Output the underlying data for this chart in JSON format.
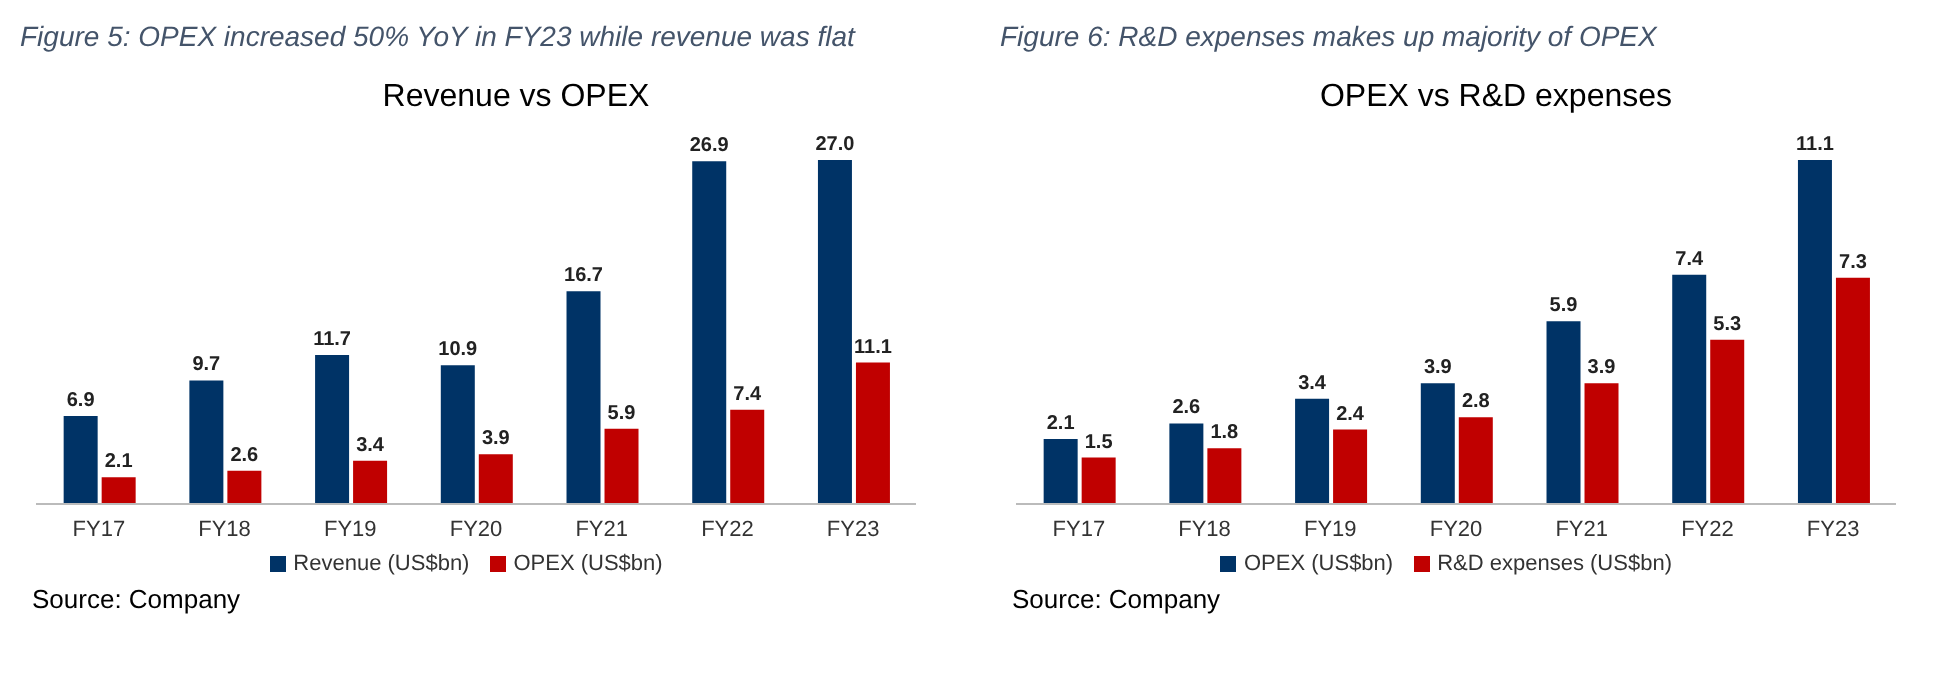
{
  "chart_data": [
    {
      "type": "bar",
      "title": "Figure 5: OPEX increased 50% YoY in FY23 while revenue was flat",
      "subtitle": "Revenue vs OPEX",
      "categories": [
        "FY17",
        "FY18",
        "FY19",
        "FY20",
        "FY21",
        "FY22",
        "FY23"
      ],
      "series": [
        {
          "name": "Revenue (US$bn)",
          "color": "#003366",
          "values": [
            6.9,
            9.7,
            11.7,
            10.9,
            16.7,
            26.9,
            27.0
          ],
          "value_labels": [
            "6.9",
            "9.7",
            "11.7",
            "10.9",
            "16.7",
            "26.9",
            "27.0"
          ]
        },
        {
          "name": "OPEX (US$bn)",
          "color": "#c00000",
          "values": [
            2.1,
            2.6,
            3.4,
            3.9,
            5.9,
            7.4,
            11.1
          ],
          "value_labels": [
            "2.1",
            "2.6",
            "3.4",
            "3.9",
            "5.9",
            "7.4",
            "11.1"
          ]
        }
      ],
      "legend": "bottom",
      "annotations": [
        "Source: Company"
      ]
    },
    {
      "type": "bar",
      "title": "Figure 6: R&D expenses makes up majority of OPEX",
      "subtitle": "OPEX vs R&D expenses",
      "categories": [
        "FY17",
        "FY18",
        "FY19",
        "FY20",
        "FY21",
        "FY22",
        "FY23"
      ],
      "series": [
        {
          "name": "OPEX (US$bn)",
          "color": "#003366",
          "values": [
            2.1,
            2.6,
            3.4,
            3.9,
            5.9,
            7.4,
            11.1
          ],
          "value_labels": [
            "2.1",
            "2.6",
            "3.4",
            "3.9",
            "5.9",
            "7.4",
            "11.1"
          ]
        },
        {
          "name": "R&D expenses (US$bn)",
          "color": "#c00000",
          "values": [
            1.5,
            1.8,
            2.4,
            2.8,
            3.9,
            5.3,
            7.3
          ],
          "value_labels": [
            "1.5",
            "1.8",
            "2.4",
            "2.8",
            "3.9",
            "5.3",
            "7.3"
          ]
        }
      ],
      "legend": "bottom",
      "annotations": [
        "Source: Company"
      ]
    }
  ]
}
